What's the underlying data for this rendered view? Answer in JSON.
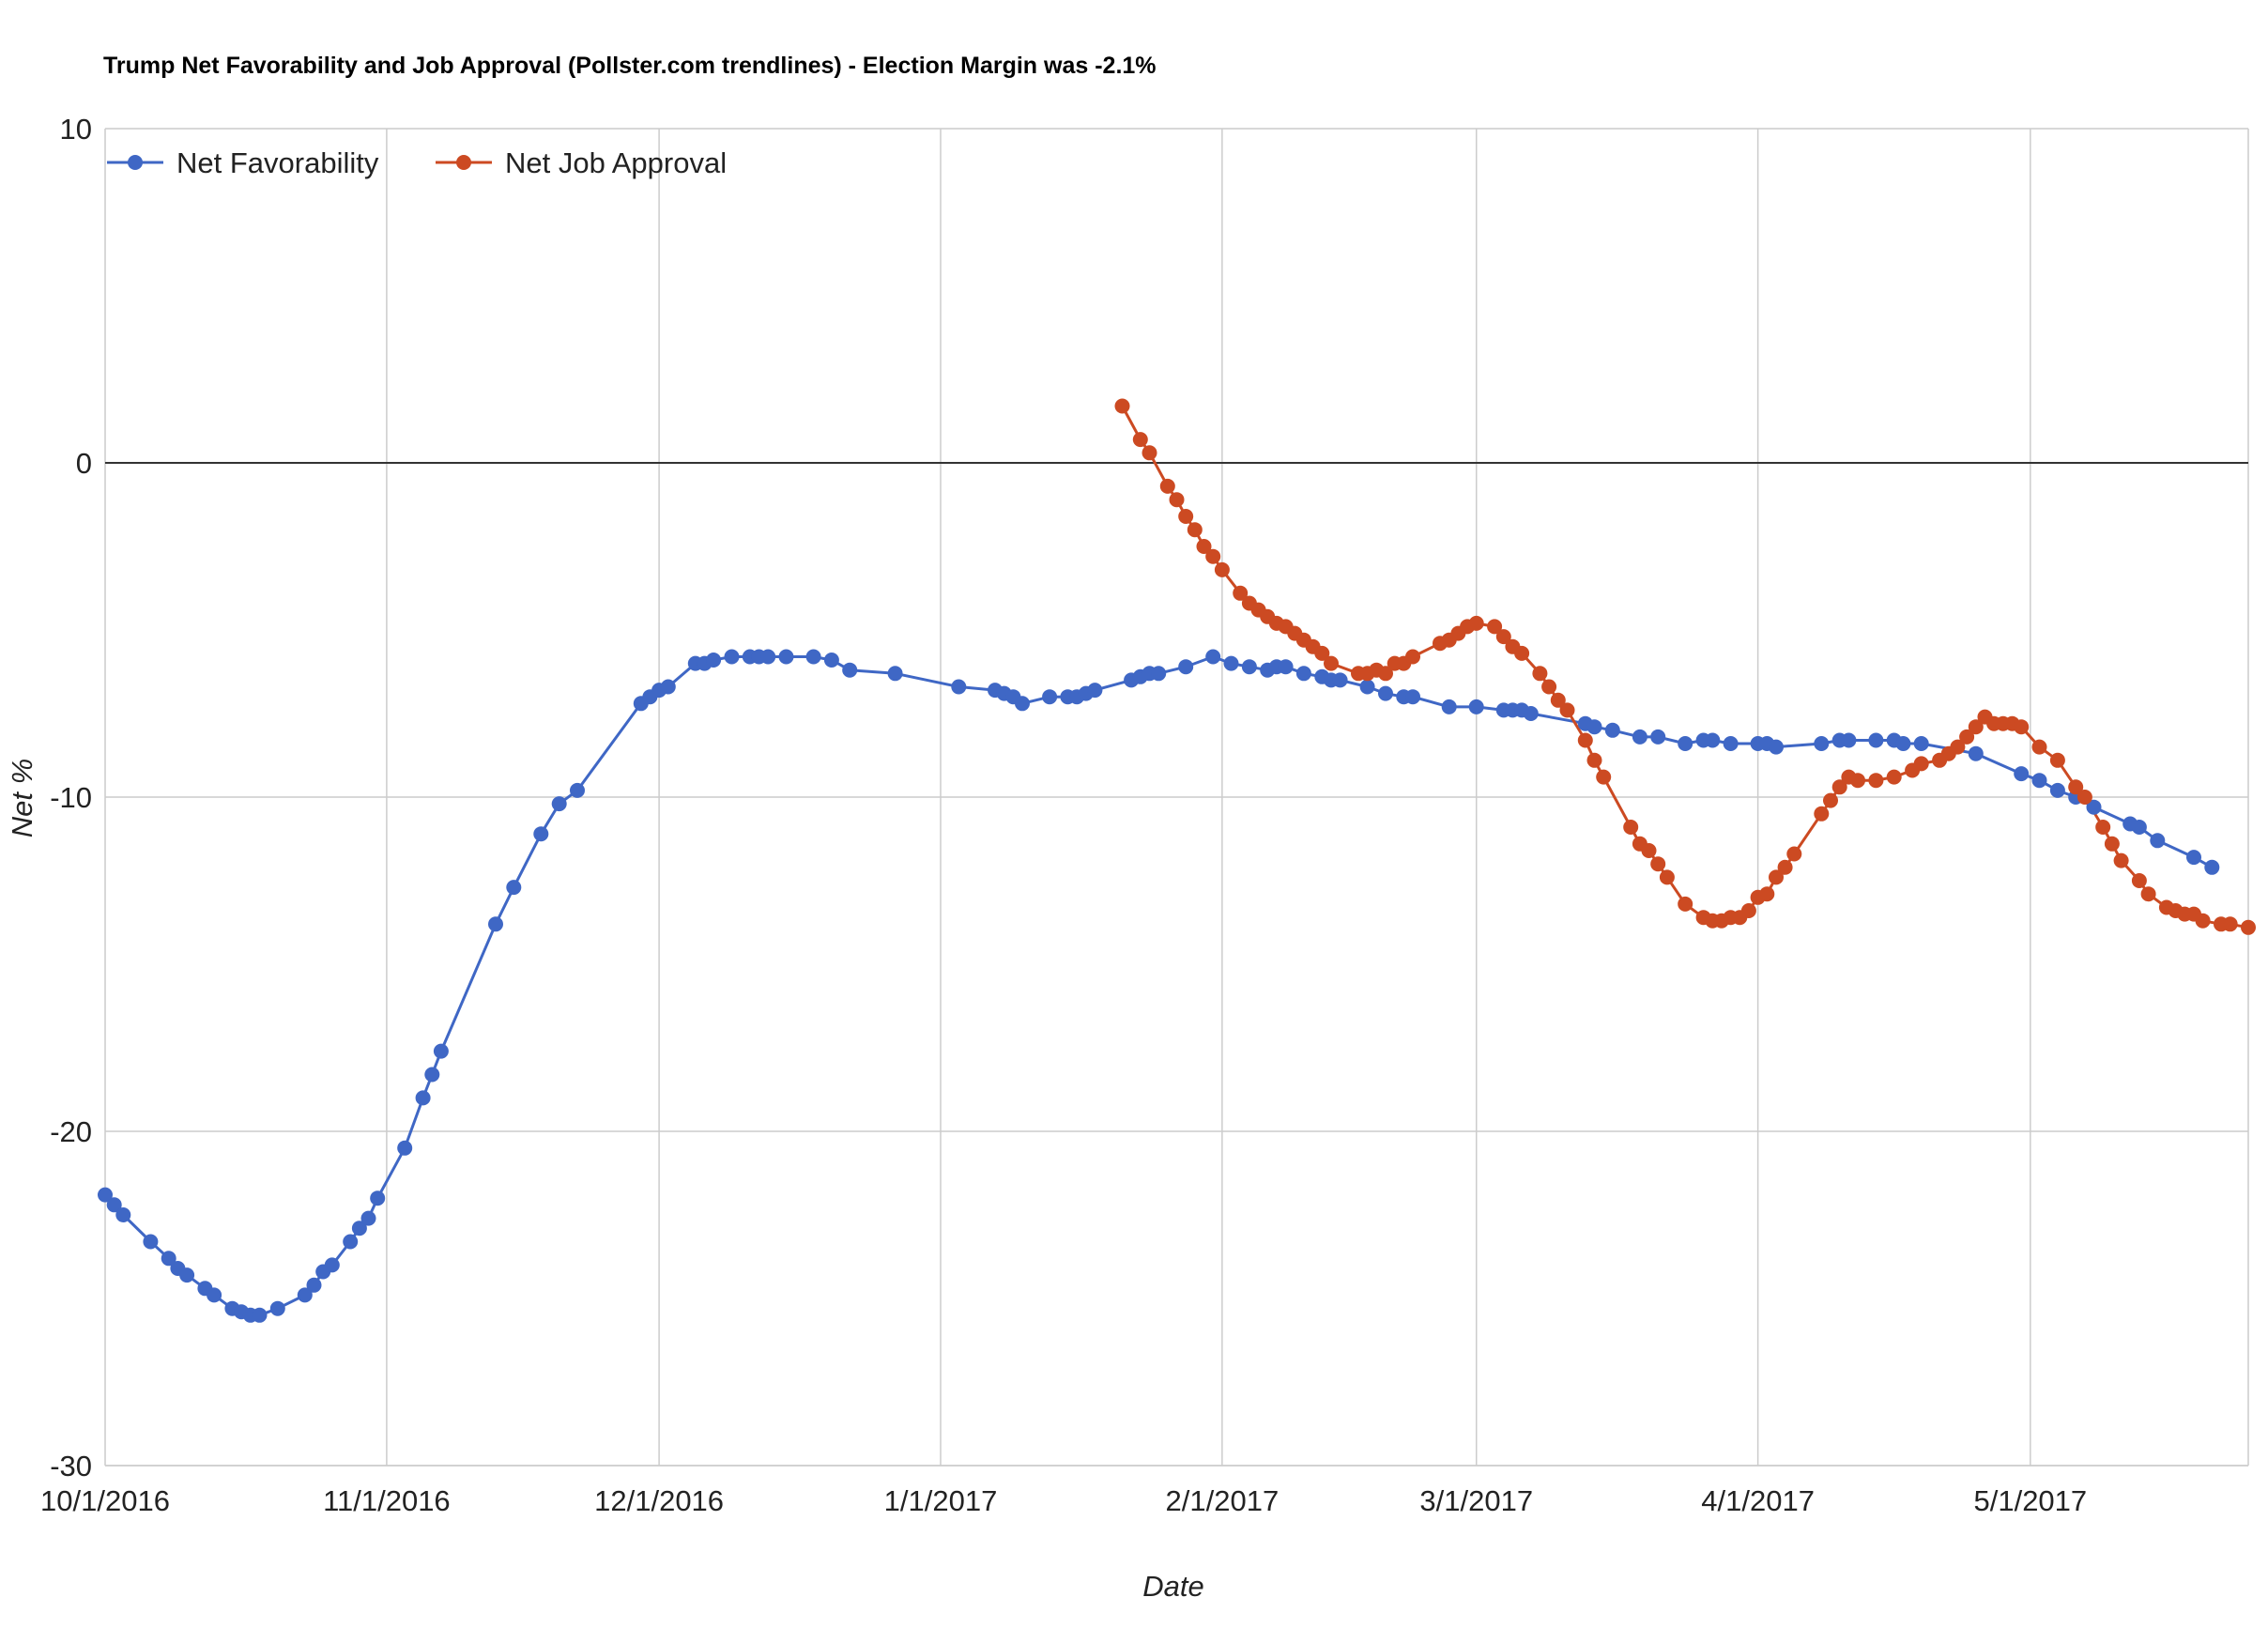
{
  "chart_data": {
    "type": "line",
    "title": "Trump Net Favorability and Job Approval (Pollster.com trendlines) - Election Margin was -2.1%",
    "xlabel": "Date",
    "ylabel": "Net %",
    "ylim": [
      -30,
      10
    ],
    "yticks": [
      "10",
      "0",
      "-10",
      "-20",
      "-30"
    ],
    "xticks": [
      "10/1/2016",
      "11/1/2016",
      "12/1/2016",
      "1/1/2017",
      "2/1/2017",
      "3/1/2017",
      "4/1/2017",
      "5/1/2017"
    ],
    "xrange": [
      "2016-10-01",
      "2017-05-25"
    ],
    "legend_position": "top-left",
    "grid": true,
    "series": [
      {
        "name": "Net Favorability",
        "color": "#3f67c5",
        "points": [
          [
            "2016-10-01",
            -21.9
          ],
          [
            "2016-10-02",
            -22.2
          ],
          [
            "2016-10-03",
            -22.5
          ],
          [
            "2016-10-06",
            -23.3
          ],
          [
            "2016-10-08",
            -23.8
          ],
          [
            "2016-10-09",
            -24.1
          ],
          [
            "2016-10-10",
            -24.3
          ],
          [
            "2016-10-12",
            -24.7
          ],
          [
            "2016-10-13",
            -24.9
          ],
          [
            "2016-10-15",
            -25.3
          ],
          [
            "2016-10-16",
            -25.4
          ],
          [
            "2016-10-17",
            -25.5
          ],
          [
            "2016-10-18",
            -25.5
          ],
          [
            "2016-10-20",
            -25.3
          ],
          [
            "2016-10-23",
            -24.9
          ],
          [
            "2016-10-24",
            -24.6
          ],
          [
            "2016-10-25",
            -24.2
          ],
          [
            "2016-10-26",
            -24.0
          ],
          [
            "2016-10-28",
            -23.3
          ],
          [
            "2016-10-29",
            -22.9
          ],
          [
            "2016-10-30",
            -22.6
          ],
          [
            "2016-10-31",
            -22.0
          ],
          [
            "2016-11-03",
            -20.5
          ],
          [
            "2016-11-05",
            -19.0
          ],
          [
            "2016-11-06",
            -18.3
          ],
          [
            "2016-11-07",
            -17.6
          ],
          [
            "2016-11-13",
            -13.8
          ],
          [
            "2016-11-15",
            -12.7
          ],
          [
            "2016-11-18",
            -11.1
          ],
          [
            "2016-11-20",
            -10.2
          ],
          [
            "2016-11-22",
            -9.8
          ],
          [
            "2016-11-29",
            -7.2
          ],
          [
            "2016-11-30",
            -7.0
          ],
          [
            "2016-12-01",
            -6.8
          ],
          [
            "2016-12-02",
            -6.7
          ],
          [
            "2016-12-05",
            -6.0
          ],
          [
            "2016-12-06",
            -6.0
          ],
          [
            "2016-12-07",
            -5.9
          ],
          [
            "2016-12-09",
            -5.8
          ],
          [
            "2016-12-11",
            -5.8
          ],
          [
            "2016-12-12",
            -5.8
          ],
          [
            "2016-12-13",
            -5.8
          ],
          [
            "2016-12-15",
            -5.8
          ],
          [
            "2016-12-18",
            -5.8
          ],
          [
            "2016-12-20",
            -5.9
          ],
          [
            "2016-12-22",
            -6.2
          ],
          [
            "2016-12-27",
            -6.3
          ],
          [
            "2017-01-03",
            -6.7
          ],
          [
            "2017-01-07",
            -6.8
          ],
          [
            "2017-01-08",
            -6.9
          ],
          [
            "2017-01-09",
            -7.0
          ],
          [
            "2017-01-10",
            -7.2
          ],
          [
            "2017-01-13",
            -7.0
          ],
          [
            "2017-01-15",
            -7.0
          ],
          [
            "2017-01-16",
            -7.0
          ],
          [
            "2017-01-17",
            -6.9
          ],
          [
            "2017-01-18",
            -6.8
          ],
          [
            "2017-01-22",
            -6.5
          ],
          [
            "2017-01-23",
            -6.4
          ],
          [
            "2017-01-24",
            -6.3
          ],
          [
            "2017-01-25",
            -6.3
          ],
          [
            "2017-01-28",
            -6.1
          ],
          [
            "2017-01-31",
            -5.8
          ],
          [
            "2017-02-02",
            -6.0
          ],
          [
            "2017-02-04",
            -6.1
          ],
          [
            "2017-02-06",
            -6.2
          ],
          [
            "2017-02-07",
            -6.1
          ],
          [
            "2017-02-08",
            -6.1
          ],
          [
            "2017-02-10",
            -6.3
          ],
          [
            "2017-02-12",
            -6.4
          ],
          [
            "2017-02-13",
            -6.5
          ],
          [
            "2017-02-14",
            -6.5
          ],
          [
            "2017-02-17",
            -6.7
          ],
          [
            "2017-02-19",
            -6.9
          ],
          [
            "2017-02-21",
            -7.0
          ],
          [
            "2017-02-22",
            -7.0
          ],
          [
            "2017-02-26",
            -7.3
          ],
          [
            "2017-03-01",
            -7.3
          ],
          [
            "2017-03-04",
            -7.4
          ],
          [
            "2017-03-05",
            -7.4
          ],
          [
            "2017-03-06",
            -7.4
          ],
          [
            "2017-03-07",
            -7.5
          ],
          [
            "2017-03-13",
            -7.8
          ],
          [
            "2017-03-14",
            -7.9
          ],
          [
            "2017-03-16",
            -8.0
          ],
          [
            "2017-03-19",
            -8.2
          ],
          [
            "2017-03-21",
            -8.2
          ],
          [
            "2017-03-24",
            -8.4
          ],
          [
            "2017-03-26",
            -8.3
          ],
          [
            "2017-03-27",
            -8.3
          ],
          [
            "2017-03-29",
            -8.4
          ],
          [
            "2017-04-01",
            -8.4
          ],
          [
            "2017-04-02",
            -8.4
          ],
          [
            "2017-04-03",
            -8.5
          ],
          [
            "2017-04-08",
            -8.4
          ],
          [
            "2017-04-10",
            -8.3
          ],
          [
            "2017-04-11",
            -8.3
          ],
          [
            "2017-04-14",
            -8.3
          ],
          [
            "2017-04-16",
            -8.3
          ],
          [
            "2017-04-17",
            -8.4
          ],
          [
            "2017-04-19",
            -8.4
          ],
          [
            "2017-04-25",
            -8.7
          ],
          [
            "2017-04-30",
            -9.3
          ],
          [
            "2017-05-02",
            -9.5
          ],
          [
            "2017-05-04",
            -9.8
          ],
          [
            "2017-05-06",
            -10.0
          ],
          [
            "2017-05-08",
            -10.3
          ],
          [
            "2017-05-12",
            -10.8
          ],
          [
            "2017-05-13",
            -10.9
          ],
          [
            "2017-05-15",
            -11.3
          ],
          [
            "2017-05-19",
            -11.8
          ],
          [
            "2017-05-21",
            -12.1
          ]
        ]
      },
      {
        "name": "Net Job Approval",
        "color": "#cc4a22",
        "points": [
          [
            "2017-01-21",
            1.7
          ],
          [
            "2017-01-23",
            0.7
          ],
          [
            "2017-01-24",
            0.3
          ],
          [
            "2017-01-26",
            -0.7
          ],
          [
            "2017-01-27",
            -1.1
          ],
          [
            "2017-01-28",
            -1.6
          ],
          [
            "2017-01-29",
            -2.0
          ],
          [
            "2017-01-30",
            -2.5
          ],
          [
            "2017-01-31",
            -2.8
          ],
          [
            "2017-02-01",
            -3.2
          ],
          [
            "2017-02-03",
            -3.9
          ],
          [
            "2017-02-04",
            -4.2
          ],
          [
            "2017-02-05",
            -4.4
          ],
          [
            "2017-02-06",
            -4.6
          ],
          [
            "2017-02-07",
            -4.8
          ],
          [
            "2017-02-08",
            -4.9
          ],
          [
            "2017-02-09",
            -5.1
          ],
          [
            "2017-02-10",
            -5.3
          ],
          [
            "2017-02-11",
            -5.5
          ],
          [
            "2017-02-12",
            -5.7
          ],
          [
            "2017-02-13",
            -6.0
          ],
          [
            "2017-02-16",
            -6.3
          ],
          [
            "2017-02-17",
            -6.3
          ],
          [
            "2017-02-18",
            -6.2
          ],
          [
            "2017-02-19",
            -6.3
          ],
          [
            "2017-02-20",
            -6.0
          ],
          [
            "2017-02-21",
            -6.0
          ],
          [
            "2017-02-22",
            -5.8
          ],
          [
            "2017-02-25",
            -5.4
          ],
          [
            "2017-02-26",
            -5.3
          ],
          [
            "2017-02-27",
            -5.1
          ],
          [
            "2017-02-28",
            -4.9
          ],
          [
            "2017-03-01",
            -4.8
          ],
          [
            "2017-03-03",
            -4.9
          ],
          [
            "2017-03-04",
            -5.2
          ],
          [
            "2017-03-05",
            -5.5
          ],
          [
            "2017-03-06",
            -5.7
          ],
          [
            "2017-03-08",
            -6.3
          ],
          [
            "2017-03-09",
            -6.7
          ],
          [
            "2017-03-10",
            -7.1
          ],
          [
            "2017-03-11",
            -7.4
          ],
          [
            "2017-03-13",
            -8.3
          ],
          [
            "2017-03-14",
            -8.9
          ],
          [
            "2017-03-15",
            -9.4
          ],
          [
            "2017-03-18",
            -10.9
          ],
          [
            "2017-03-19",
            -11.4
          ],
          [
            "2017-03-20",
            -11.6
          ],
          [
            "2017-03-21",
            -12.0
          ],
          [
            "2017-03-22",
            -12.4
          ],
          [
            "2017-03-24",
            -13.2
          ],
          [
            "2017-03-26",
            -13.6
          ],
          [
            "2017-03-27",
            -13.7
          ],
          [
            "2017-03-28",
            -13.7
          ],
          [
            "2017-03-29",
            -13.6
          ],
          [
            "2017-03-30",
            -13.6
          ],
          [
            "2017-03-31",
            -13.4
          ],
          [
            "2017-04-01",
            -13.0
          ],
          [
            "2017-04-02",
            -12.9
          ],
          [
            "2017-04-03",
            -12.4
          ],
          [
            "2017-04-04",
            -12.1
          ],
          [
            "2017-04-05",
            -11.7
          ],
          [
            "2017-04-08",
            -10.5
          ],
          [
            "2017-04-09",
            -10.1
          ],
          [
            "2017-04-10",
            -9.7
          ],
          [
            "2017-04-11",
            -9.4
          ],
          [
            "2017-04-12",
            -9.5
          ],
          [
            "2017-04-14",
            -9.5
          ],
          [
            "2017-04-16",
            -9.4
          ],
          [
            "2017-04-18",
            -9.2
          ],
          [
            "2017-04-19",
            -9.0
          ],
          [
            "2017-04-21",
            -8.9
          ],
          [
            "2017-04-22",
            -8.7
          ],
          [
            "2017-04-23",
            -8.5
          ],
          [
            "2017-04-24",
            -8.2
          ],
          [
            "2017-04-25",
            -7.9
          ],
          [
            "2017-04-26",
            -7.6
          ],
          [
            "2017-04-27",
            -7.8
          ],
          [
            "2017-04-28",
            -7.8
          ],
          [
            "2017-04-29",
            -7.8
          ],
          [
            "2017-04-30",
            -7.9
          ],
          [
            "2017-05-02",
            -8.5
          ],
          [
            "2017-05-04",
            -8.9
          ],
          [
            "2017-05-06",
            -9.7
          ],
          [
            "2017-05-07",
            -10.0
          ],
          [
            "2017-05-09",
            -10.9
          ],
          [
            "2017-05-10",
            -11.4
          ],
          [
            "2017-05-11",
            -11.9
          ],
          [
            "2017-05-13",
            -12.5
          ],
          [
            "2017-05-14",
            -12.9
          ],
          [
            "2017-05-16",
            -13.3
          ],
          [
            "2017-05-17",
            -13.4
          ],
          [
            "2017-05-18",
            -13.5
          ],
          [
            "2017-05-19",
            -13.5
          ],
          [
            "2017-05-20",
            -13.7
          ],
          [
            "2017-05-22",
            -13.8
          ],
          [
            "2017-05-23",
            -13.8
          ],
          [
            "2017-05-25",
            -13.9
          ]
        ]
      }
    ]
  }
}
